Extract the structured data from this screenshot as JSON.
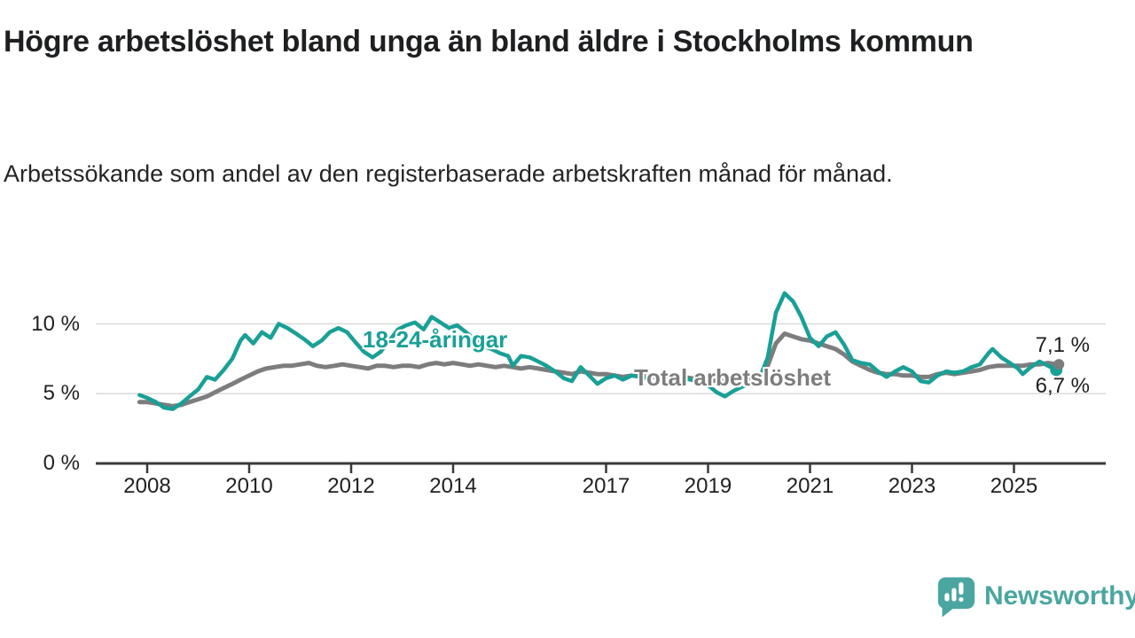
{
  "header": {
    "title": "Högre arbetslöshet bland unga än bland äldre i Stockholms kommun",
    "subtitle": "Arbetssökande som andel av den registerbaserade arbetskraften månad för månad."
  },
  "chart_data": {
    "type": "line",
    "title": "Högre arbetslöshet bland unga än bland äldre i Stockholms kommun",
    "subtitle": "Arbetssökande som andel av den registerbaserade arbetskraften månad för månad.",
    "xlabel": "",
    "ylabel": "",
    "x_unit": "decimal year (monthly observations)",
    "y_unit": "% av registerbaserad arbetskraft",
    "xlim": [
      2007.8,
      2026.3
    ],
    "ylim": [
      0,
      13.2
    ],
    "grid": "horizontal gridlines at 5 % and 10 %, dark baseline at 0 %",
    "legend_position": "inline labels on lines",
    "grid_color": "#dadada",
    "axis_color": "#3a3a3a",
    "yticks": [
      {
        "value": 0,
        "label": "0 %"
      },
      {
        "value": 5,
        "label": "5 %"
      },
      {
        "value": 10,
        "label": "10 %"
      }
    ],
    "xticks": [
      {
        "year": 2008,
        "label": "2008"
      },
      {
        "year": 2010,
        "label": "2010"
      },
      {
        "year": 2012,
        "label": "2012"
      },
      {
        "year": 2014,
        "label": "2014"
      },
      {
        "year": 2017,
        "label": "2017"
      },
      {
        "year": 2019,
        "label": "2019"
      },
      {
        "year": 2021,
        "label": "2021"
      },
      {
        "year": 2023,
        "label": "2023"
      },
      {
        "year": 2025,
        "label": "2025"
      }
    ],
    "series": [
      {
        "id": "young",
        "name": "18-24-åringar",
        "color": "#19a096",
        "width": 4.5,
        "dot_r": 7,
        "end_label": "6,7 %",
        "end_value": 6.7,
        "points": [
          [
            2007.85,
            4.9
          ],
          [
            2008.0,
            4.7
          ],
          [
            2008.17,
            4.4
          ],
          [
            2008.33,
            4.0
          ],
          [
            2008.5,
            3.9
          ],
          [
            2008.67,
            4.3
          ],
          [
            2008.83,
            4.8
          ],
          [
            2009.0,
            5.3
          ],
          [
            2009.17,
            6.2
          ],
          [
            2009.33,
            6.0
          ],
          [
            2009.5,
            6.7
          ],
          [
            2009.67,
            7.5
          ],
          [
            2009.83,
            8.8
          ],
          [
            2009.92,
            9.2
          ],
          [
            2010.08,
            8.6
          ],
          [
            2010.25,
            9.4
          ],
          [
            2010.42,
            9.0
          ],
          [
            2010.58,
            10.0
          ],
          [
            2010.75,
            9.7
          ],
          [
            2010.92,
            9.3
          ],
          [
            2011.08,
            8.9
          ],
          [
            2011.25,
            8.4
          ],
          [
            2011.42,
            8.8
          ],
          [
            2011.58,
            9.4
          ],
          [
            2011.75,
            9.7
          ],
          [
            2011.92,
            9.4
          ],
          [
            2012.08,
            8.7
          ],
          [
            2012.25,
            8.0
          ],
          [
            2012.42,
            7.6
          ],
          [
            2012.58,
            8.0
          ],
          [
            2012.75,
            8.8
          ],
          [
            2012.92,
            9.6
          ],
          [
            2013.08,
            9.9
          ],
          [
            2013.25,
            10.1
          ],
          [
            2013.42,
            9.6
          ],
          [
            2013.58,
            10.5
          ],
          [
            2013.75,
            10.1
          ],
          [
            2013.92,
            9.7
          ],
          [
            2014.08,
            9.9
          ],
          [
            2014.25,
            9.4
          ],
          [
            2014.42,
            8.9
          ],
          [
            2014.58,
            8.4
          ],
          [
            2014.75,
            8.2
          ],
          [
            2014.92,
            7.9
          ],
          [
            2015.08,
            7.7
          ],
          [
            2015.17,
            7.0
          ],
          [
            2015.33,
            7.7
          ],
          [
            2015.5,
            7.6
          ],
          [
            2015.67,
            7.3
          ],
          [
            2015.83,
            7.0
          ],
          [
            2016.0,
            6.6
          ],
          [
            2016.17,
            6.1
          ],
          [
            2016.33,
            5.9
          ],
          [
            2016.5,
            6.9
          ],
          [
            2016.67,
            6.3
          ],
          [
            2016.83,
            5.7
          ],
          [
            2017.0,
            6.1
          ],
          [
            2017.17,
            6.3
          ],
          [
            2017.33,
            6.0
          ],
          [
            2017.5,
            6.3
          ],
          [
            2017.67,
            6.2
          ],
          [
            2017.83,
            6.1
          ],
          [
            2018.0,
            6.3
          ],
          [
            2018.17,
            6.0
          ],
          [
            2018.33,
            5.9
          ],
          [
            2018.5,
            6.1
          ],
          [
            2018.67,
            6.0
          ],
          [
            2018.83,
            5.8
          ],
          [
            2019.0,
            5.6
          ],
          [
            2019.17,
            5.1
          ],
          [
            2019.33,
            4.8
          ],
          [
            2019.5,
            5.2
          ],
          [
            2019.67,
            5.5
          ],
          [
            2019.83,
            5.7
          ],
          [
            2020.0,
            6.0
          ],
          [
            2020.17,
            7.6
          ],
          [
            2020.33,
            10.8
          ],
          [
            2020.5,
            12.2
          ],
          [
            2020.67,
            11.6
          ],
          [
            2020.83,
            10.5
          ],
          [
            2021.0,
            9.0
          ],
          [
            2021.17,
            8.4
          ],
          [
            2021.33,
            9.1
          ],
          [
            2021.5,
            9.4
          ],
          [
            2021.67,
            8.5
          ],
          [
            2021.83,
            7.4
          ],
          [
            2022.0,
            7.2
          ],
          [
            2022.17,
            7.1
          ],
          [
            2022.33,
            6.6
          ],
          [
            2022.5,
            6.2
          ],
          [
            2022.67,
            6.6
          ],
          [
            2022.83,
            6.9
          ],
          [
            2023.0,
            6.6
          ],
          [
            2023.17,
            5.9
          ],
          [
            2023.33,
            5.8
          ],
          [
            2023.5,
            6.3
          ],
          [
            2023.67,
            6.6
          ],
          [
            2023.83,
            6.5
          ],
          [
            2024.0,
            6.6
          ],
          [
            2024.17,
            6.9
          ],
          [
            2024.33,
            7.1
          ],
          [
            2024.5,
            7.9
          ],
          [
            2024.58,
            8.2
          ],
          [
            2024.75,
            7.6
          ],
          [
            2024.92,
            7.2
          ],
          [
            2025.08,
            6.8
          ],
          [
            2025.17,
            6.4
          ],
          [
            2025.33,
            6.9
          ],
          [
            2025.5,
            7.3
          ],
          [
            2025.67,
            7.0
          ],
          [
            2025.83,
            6.7
          ]
        ]
      },
      {
        "id": "total",
        "name": "Total arbetslöshet",
        "color": "#7d7d7d",
        "width": 5,
        "dot_r": 6,
        "end_label": "7,1 %",
        "end_value": 7.1,
        "points": [
          [
            2007.85,
            4.4
          ],
          [
            2008.0,
            4.4
          ],
          [
            2008.17,
            4.3
          ],
          [
            2008.33,
            4.2
          ],
          [
            2008.5,
            4.1
          ],
          [
            2008.67,
            4.2
          ],
          [
            2008.83,
            4.4
          ],
          [
            2009.0,
            4.6
          ],
          [
            2009.17,
            4.8
          ],
          [
            2009.33,
            5.1
          ],
          [
            2009.5,
            5.4
          ],
          [
            2009.67,
            5.7
          ],
          [
            2009.83,
            6.0
          ],
          [
            2010.0,
            6.3
          ],
          [
            2010.17,
            6.6
          ],
          [
            2010.33,
            6.8
          ],
          [
            2010.5,
            6.9
          ],
          [
            2010.67,
            7.0
          ],
          [
            2010.83,
            7.0
          ],
          [
            2011.0,
            7.1
          ],
          [
            2011.17,
            7.2
          ],
          [
            2011.33,
            7.0
          ],
          [
            2011.5,
            6.9
          ],
          [
            2011.67,
            7.0
          ],
          [
            2011.83,
            7.1
          ],
          [
            2012.0,
            7.0
          ],
          [
            2012.17,
            6.9
          ],
          [
            2012.33,
            6.8
          ],
          [
            2012.5,
            7.0
          ],
          [
            2012.67,
            7.0
          ],
          [
            2012.83,
            6.9
          ],
          [
            2013.0,
            7.0
          ],
          [
            2013.17,
            7.0
          ],
          [
            2013.33,
            6.9
          ],
          [
            2013.5,
            7.1
          ],
          [
            2013.67,
            7.2
          ],
          [
            2013.83,
            7.1
          ],
          [
            2014.0,
            7.2
          ],
          [
            2014.17,
            7.1
          ],
          [
            2014.33,
            7.0
          ],
          [
            2014.5,
            7.1
          ],
          [
            2014.67,
            7.0
          ],
          [
            2014.83,
            6.9
          ],
          [
            2015.0,
            7.0
          ],
          [
            2015.17,
            6.9
          ],
          [
            2015.33,
            6.8
          ],
          [
            2015.5,
            6.9
          ],
          [
            2015.67,
            6.8
          ],
          [
            2015.83,
            6.7
          ],
          [
            2016.0,
            6.6
          ],
          [
            2016.17,
            6.5
          ],
          [
            2016.33,
            6.4
          ],
          [
            2016.5,
            6.6
          ],
          [
            2016.67,
            6.5
          ],
          [
            2016.83,
            6.4
          ],
          [
            2017.0,
            6.4
          ],
          [
            2017.17,
            6.3
          ],
          [
            2017.33,
            6.2
          ],
          [
            2017.5,
            6.3
          ],
          [
            2017.67,
            6.3
          ],
          [
            2017.83,
            6.2
          ],
          [
            2018.0,
            6.2
          ],
          [
            2018.17,
            6.1
          ],
          [
            2018.33,
            6.0
          ],
          [
            2018.5,
            6.2
          ],
          [
            2018.67,
            6.1
          ],
          [
            2018.83,
            6.0
          ],
          [
            2019.0,
            6.0
          ],
          [
            2019.17,
            5.9
          ],
          [
            2019.33,
            5.9
          ],
          [
            2019.5,
            6.0
          ],
          [
            2019.67,
            6.0
          ],
          [
            2019.83,
            6.0
          ],
          [
            2020.0,
            6.1
          ],
          [
            2020.17,
            7.0
          ],
          [
            2020.33,
            8.6
          ],
          [
            2020.5,
            9.3
          ],
          [
            2020.67,
            9.1
          ],
          [
            2020.83,
            8.9
          ],
          [
            2021.0,
            8.8
          ],
          [
            2021.17,
            8.6
          ],
          [
            2021.33,
            8.4
          ],
          [
            2021.5,
            8.2
          ],
          [
            2021.67,
            7.8
          ],
          [
            2021.83,
            7.3
          ],
          [
            2022.0,
            7.0
          ],
          [
            2022.17,
            6.7
          ],
          [
            2022.33,
            6.5
          ],
          [
            2022.5,
            6.4
          ],
          [
            2022.67,
            6.4
          ],
          [
            2022.83,
            6.3
          ],
          [
            2023.0,
            6.3
          ],
          [
            2023.17,
            6.2
          ],
          [
            2023.33,
            6.2
          ],
          [
            2023.5,
            6.4
          ],
          [
            2023.67,
            6.5
          ],
          [
            2023.83,
            6.4
          ],
          [
            2024.0,
            6.5
          ],
          [
            2024.17,
            6.6
          ],
          [
            2024.33,
            6.7
          ],
          [
            2024.5,
            6.9
          ],
          [
            2024.67,
            7.0
          ],
          [
            2024.83,
            7.0
          ],
          [
            2025.0,
            7.0
          ],
          [
            2025.17,
            7.0
          ],
          [
            2025.33,
            7.1
          ],
          [
            2025.5,
            7.1
          ],
          [
            2025.67,
            7.2
          ],
          [
            2025.83,
            7.1
          ]
        ]
      }
    ]
  },
  "footer": {
    "brand": "Newsworthy",
    "brand_color": "#4ba6a1"
  }
}
